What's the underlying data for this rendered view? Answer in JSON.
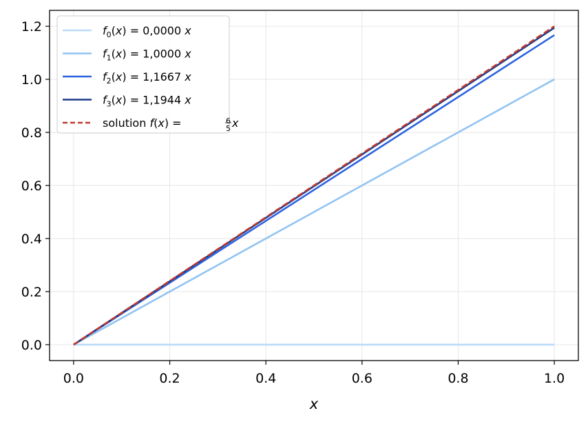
{
  "chart_data": {
    "type": "line",
    "title": "",
    "xlabel": "x",
    "ylabel": "",
    "xlim": [
      -0.05,
      1.05
    ],
    "ylim": [
      -0.06,
      1.26
    ],
    "xticks": [
      0.0,
      0.2,
      0.4,
      0.6,
      0.8,
      1.0
    ],
    "yticks": [
      0.0,
      0.2,
      0.4,
      0.6,
      0.8,
      1.0,
      1.2
    ],
    "xtick_labels": [
      "0.0",
      "0.2",
      "0.4",
      "0.6",
      "0.8",
      "1.0"
    ],
    "ytick_labels": [
      "0.0",
      "0.2",
      "0.4",
      "0.6",
      "0.8",
      "1.0",
      "1.2"
    ],
    "grid": true,
    "legend_position": "top-left",
    "series": [
      {
        "name": "f0(x) = 0,0000 x",
        "legend": {
          "fn": "f",
          "sub": "0",
          "rhs": "0,0000"
        },
        "x": [
          0,
          1
        ],
        "y": [
          0,
          0
        ],
        "color": "#bbdaf8",
        "style": "solid"
      },
      {
        "name": "f1(x) = 1,0000 x",
        "legend": {
          "fn": "f",
          "sub": "1",
          "rhs": "1,0000"
        },
        "x": [
          0,
          1
        ],
        "y": [
          0,
          1.0
        ],
        "color": "#91c3f2",
        "style": "solid"
      },
      {
        "name": "f2(x) = 1,1667 x",
        "legend": {
          "fn": "f",
          "sub": "2",
          "rhs": "1,1667"
        },
        "x": [
          0,
          1
        ],
        "y": [
          0,
          1.1667
        ],
        "color": "#2c63de",
        "style": "solid"
      },
      {
        "name": "f3(x) = 1,1944 x",
        "legend": {
          "fn": "f",
          "sub": "3",
          "rhs": "1,1944"
        },
        "x": [
          0,
          1
        ],
        "y": [
          0,
          1.1944
        ],
        "color": "#1a3a8c",
        "style": "solid"
      },
      {
        "name": "solution f(x) = 6/5 x",
        "legend": {
          "prefix": "solution",
          "fn": "f",
          "num": "6",
          "den": "5"
        },
        "x": [
          0,
          1
        ],
        "y": [
          0,
          1.2
        ],
        "color": "#c0392b",
        "style": "dashed"
      }
    ]
  }
}
